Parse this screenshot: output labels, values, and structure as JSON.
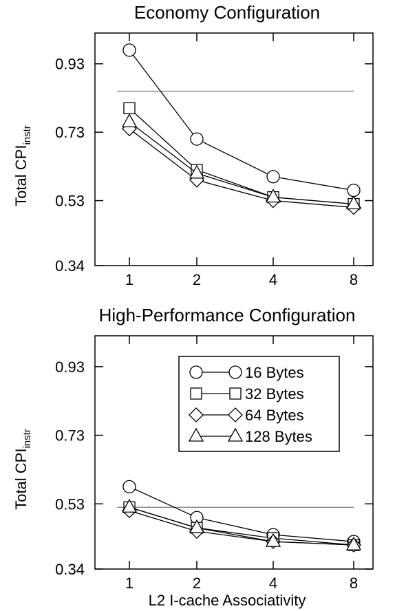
{
  "chart_data": [
    {
      "type": "line",
      "title": "Economy Configuration",
      "xlabel": "",
      "ylabel_main": "Total CPI",
      "ylabel_sub": "instr",
      "categories": [
        "1",
        "2",
        "4",
        "8"
      ],
      "ylim": [
        0.34,
        1.02
      ],
      "yticks": [
        "0.34",
        "0.53",
        "0.73",
        "0.93"
      ],
      "reference_line": 0.85,
      "series": [
        {
          "name": "16 Bytes",
          "marker": "circle",
          "values": [
            0.97,
            0.71,
            0.6,
            0.56
          ]
        },
        {
          "name": "32 Bytes",
          "marker": "square",
          "values": [
            0.8,
            0.62,
            0.54,
            0.52
          ]
        },
        {
          "name": "64 Bytes",
          "marker": "diamond",
          "values": [
            0.74,
            0.59,
            0.53,
            0.51
          ]
        },
        {
          "name": "128 Bytes",
          "marker": "triangle",
          "values": [
            0.76,
            0.61,
            0.54,
            0.52
          ]
        }
      ]
    },
    {
      "type": "line",
      "title": "High-Performance Configuration",
      "xlabel": "L2 I-cache Associativity",
      "ylabel_main": "Total CPI",
      "ylabel_sub": "instr",
      "categories": [
        "1",
        "2",
        "4",
        "8"
      ],
      "ylim": [
        0.34,
        1.02
      ],
      "yticks": [
        "0.34",
        "0.53",
        "0.73",
        "0.93"
      ],
      "reference_line": 0.52,
      "legend_position": "top-right",
      "series": [
        {
          "name": "16 Bytes",
          "marker": "circle",
          "values": [
            0.58,
            0.49,
            0.44,
            0.42
          ]
        },
        {
          "name": "32 Bytes",
          "marker": "square",
          "values": [
            0.52,
            0.46,
            0.43,
            0.41
          ]
        },
        {
          "name": "64 Bytes",
          "marker": "diamond",
          "values": [
            0.51,
            0.45,
            0.42,
            0.41
          ]
        },
        {
          "name": "128 Bytes",
          "marker": "triangle",
          "values": [
            0.52,
            0.46,
            0.42,
            0.41
          ]
        }
      ]
    }
  ]
}
